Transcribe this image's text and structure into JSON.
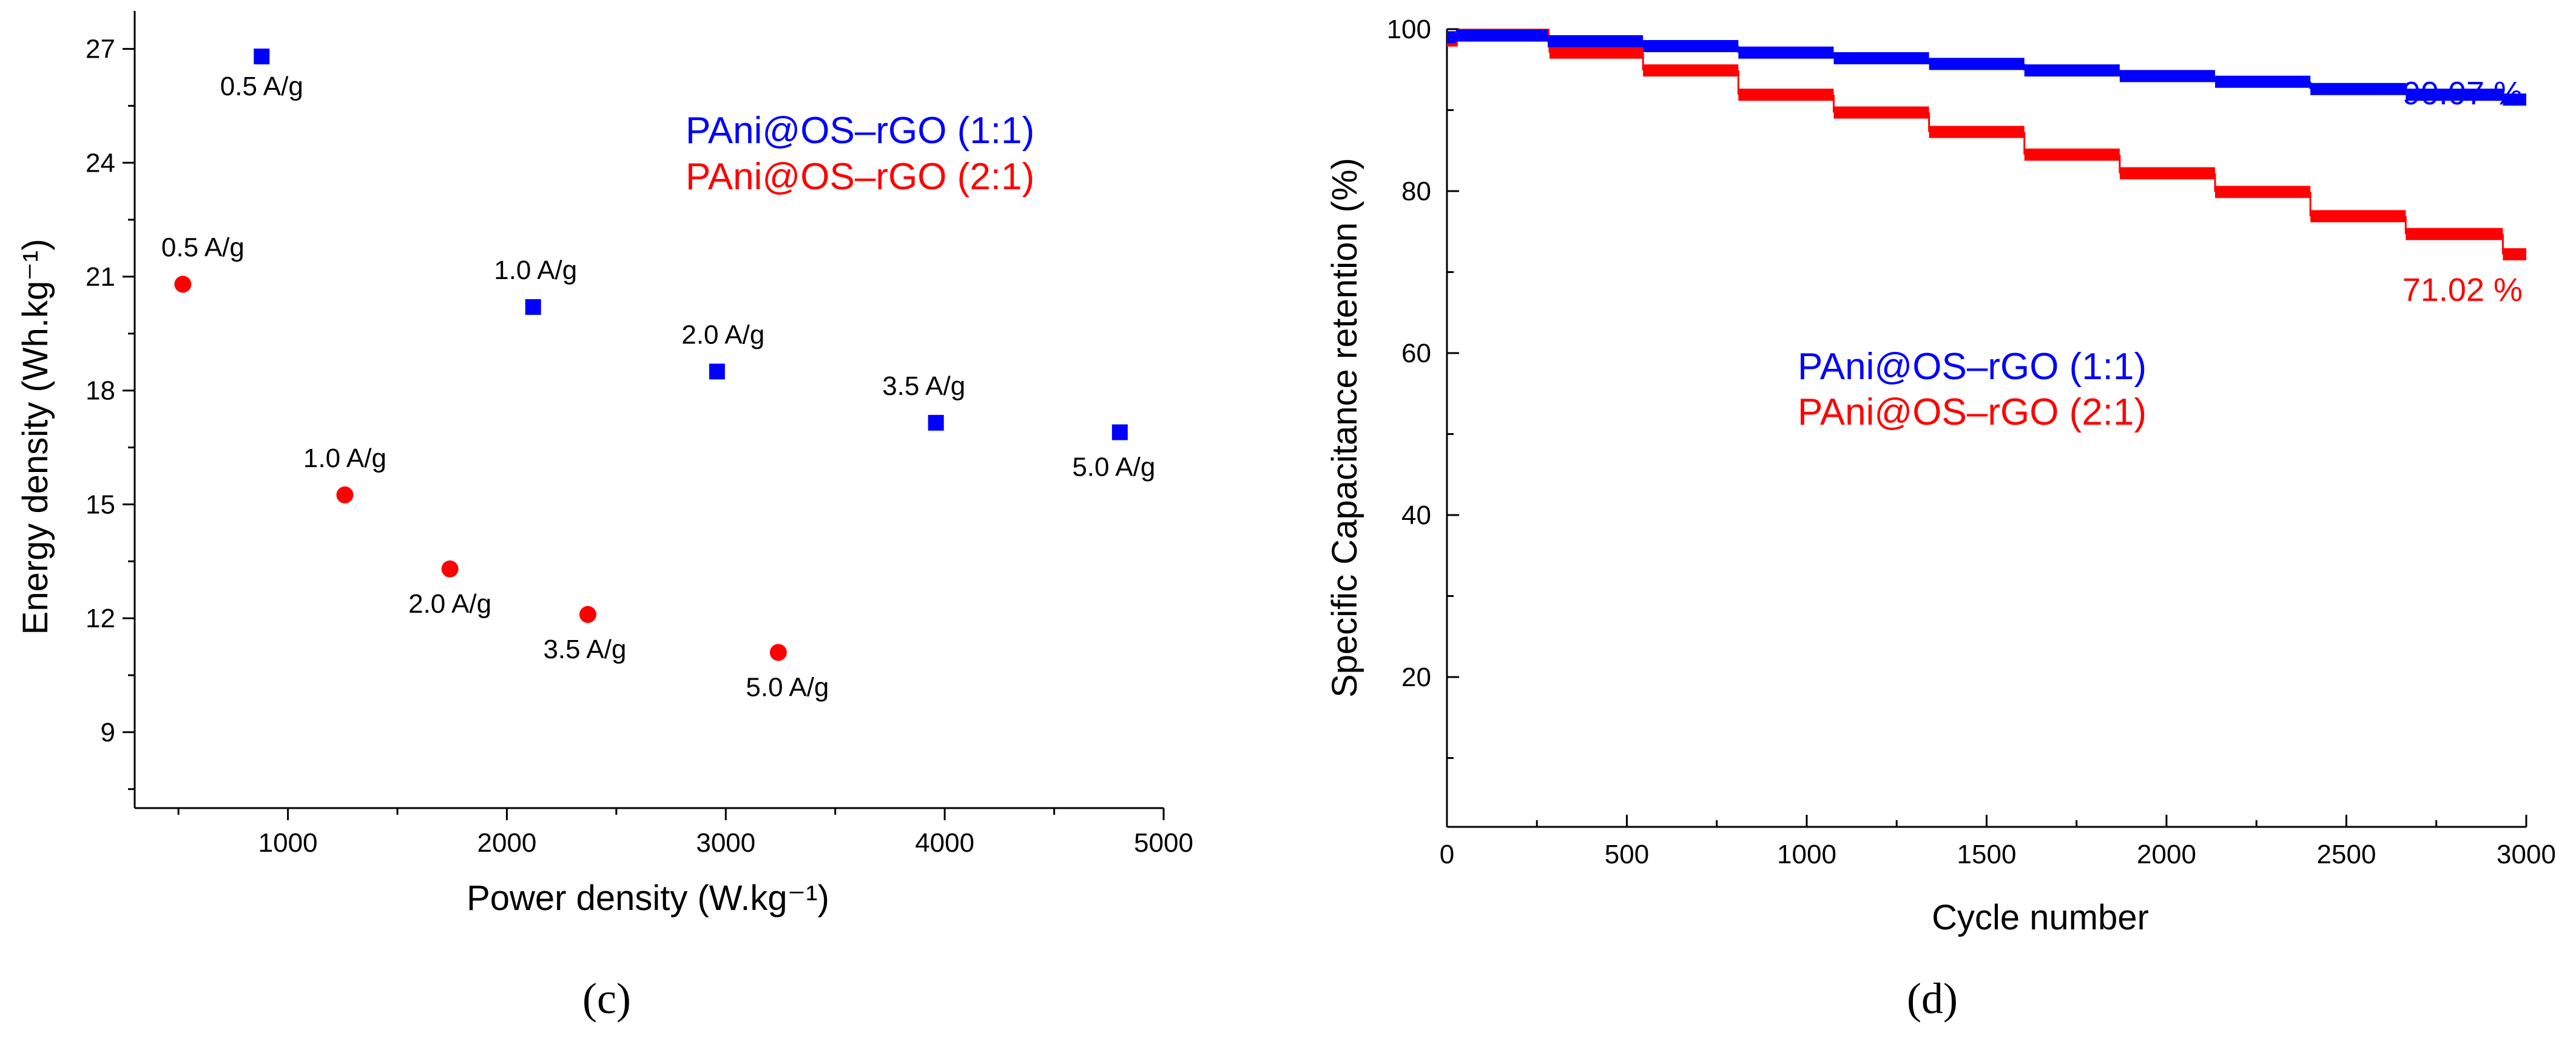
{
  "colors": {
    "series_1": "#0000ff",
    "series_2": "#ff0000",
    "axis": "#000000"
  },
  "chart_data": [
    {
      "panel": "(c)",
      "type": "scatter",
      "xlabel": "Power density (W.kg⁻¹)",
      "ylabel": "Energy density (Wh.kg⁻¹)",
      "xlim": [
        300,
        5000
      ],
      "ylim": [
        7,
        28
      ],
      "xticks": [
        1000,
        2000,
        3000,
        4000,
        5000
      ],
      "xtick_labels": [
        "1000",
        "2000",
        "3000",
        "4000",
        "5000"
      ],
      "yticks": [
        9,
        12,
        15,
        18,
        21,
        24,
        27
      ],
      "ytick_labels": [
        "9",
        "12",
        "15",
        "18",
        "21",
        "24",
        "27"
      ],
      "legend_position": "top-right",
      "series": [
        {
          "name": "PAni@OS–rGO (1:1)",
          "color": "#0000ff",
          "marker": "square",
          "points": [
            {
              "x": 880,
              "y": 26.8,
              "label": "0.5 A/g"
            },
            {
              "x": 2120,
              "y": 20.2,
              "label": "1.0 A/g"
            },
            {
              "x": 2960,
              "y": 18.5,
              "label": "2.0 A/g"
            },
            {
              "x": 3960,
              "y": 17.15,
              "label": "3.5 A/g"
            },
            {
              "x": 4800,
              "y": 16.9,
              "label": "5.0 A/g"
            }
          ]
        },
        {
          "name": "PAni@OS–rGO (2:1)",
          "color": "#ff0000",
          "marker": "circle",
          "points": [
            {
              "x": 520,
              "y": 20.8,
              "label": "0.5 A/g"
            },
            {
              "x": 1260,
              "y": 15.25,
              "label": "1.0 A/g"
            },
            {
              "x": 1740,
              "y": 13.3,
              "label": "2.0 A/g"
            },
            {
              "x": 2370,
              "y": 12.1,
              "label": "3.5 A/g"
            },
            {
              "x": 3240,
              "y": 11.1,
              "label": "5.0 A/g"
            }
          ]
        }
      ]
    },
    {
      "panel": "(d)",
      "type": "line",
      "xlabel": "Cycle number",
      "ylabel": "Specific Capacitance retention (%)",
      "xlim": [
        0,
        3000
      ],
      "ylim": [
        1.5,
        100
      ],
      "xticks": [
        0,
        500,
        1000,
        1500,
        2000,
        2500,
        3000
      ],
      "xtick_labels": [
        "0",
        "500",
        "1000",
        "1500",
        "2000",
        "2500",
        "3000"
      ],
      "yticks": [
        20,
        40,
        60,
        80,
        100
      ],
      "ytick_labels": [
        "20",
        "40",
        "60",
        "80",
        "100"
      ],
      "legend_position": "center",
      "series": [
        {
          "name": "PAni@OS–rGO (1:1)",
          "color": "#0000ff",
          "end_label": "90.07 %",
          "steps": [
            {
              "x0": 0,
              "x1": 25,
              "y": 99.0
            },
            {
              "x0": 25,
              "x1": 280,
              "y": 99.2
            },
            {
              "x0": 280,
              "x1": 545,
              "y": 98.5
            },
            {
              "x0": 545,
              "x1": 810,
              "y": 97.9
            },
            {
              "x0": 810,
              "x1": 1075,
              "y": 97.1
            },
            {
              "x0": 1075,
              "x1": 1340,
              "y": 96.4
            },
            {
              "x0": 1340,
              "x1": 1605,
              "y": 95.7
            },
            {
              "x0": 1605,
              "x1": 1870,
              "y": 94.9
            },
            {
              "x0": 1870,
              "x1": 2135,
              "y": 94.2
            },
            {
              "x0": 2135,
              "x1": 2400,
              "y": 93.5
            },
            {
              "x0": 2400,
              "x1": 2665,
              "y": 92.6
            },
            {
              "x0": 2665,
              "x1": 2935,
              "y": 91.9
            },
            {
              "x0": 2935,
              "x1": 3000,
              "y": 91.3
            }
          ]
        },
        {
          "name": "PAni@OS–rGO (2:1)",
          "color": "#ff0000",
          "end_label": "71.02 %",
          "steps": [
            {
              "x0": 0,
              "x1": 30,
              "y": 98.6
            },
            {
              "x0": 30,
              "x1": 285,
              "y": 99.3
            },
            {
              "x0": 285,
              "x1": 545,
              "y": 97.1
            },
            {
              "x0": 545,
              "x1": 810,
              "y": 94.9
            },
            {
              "x0": 810,
              "x1": 1075,
              "y": 91.9
            },
            {
              "x0": 1075,
              "x1": 1340,
              "y": 89.7
            },
            {
              "x0": 1340,
              "x1": 1605,
              "y": 87.3
            },
            {
              "x0": 1605,
              "x1": 1870,
              "y": 84.5
            },
            {
              "x0": 1870,
              "x1": 2135,
              "y": 82.2
            },
            {
              "x0": 2135,
              "x1": 2400,
              "y": 79.9
            },
            {
              "x0": 2400,
              "x1": 2665,
              "y": 76.9
            },
            {
              "x0": 2665,
              "x1": 2935,
              "y": 74.7
            },
            {
              "x0": 2935,
              "x1": 3000,
              "y": 72.2
            }
          ]
        }
      ]
    }
  ]
}
